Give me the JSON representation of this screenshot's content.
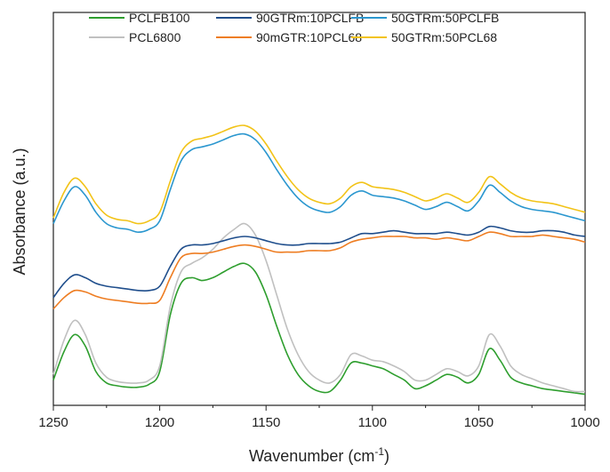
{
  "chart_data": {
    "type": "line",
    "title": "",
    "xlabel": "Wavenumber (cm",
    "xlabel_superscript": "-1",
    "xlabel_suffix": ")",
    "ylabel": "Absorbance (a.u.)",
    "xlim": [
      1250,
      1000
    ],
    "x_direction": "reversed",
    "ylim": [
      0,
      1
    ],
    "y_ticks_labeled": false,
    "x_ticks": [
      "1250",
      "1200",
      "1150",
      "1100",
      "1050",
      "1000"
    ],
    "legend_position": "top",
    "series": [
      {
        "name": "PCLFB100",
        "color": "#2e9e2e",
        "points": [
          [
            1250,
            0.07
          ],
          [
            1245,
            0.17
          ],
          [
            1240,
            0.23
          ],
          [
            1235,
            0.19
          ],
          [
            1230,
            0.1
          ],
          [
            1225,
            0.06
          ],
          [
            1220,
            0.05
          ],
          [
            1215,
            0.045
          ],
          [
            1210,
            0.045
          ],
          [
            1205,
            0.055
          ],
          [
            1200,
            0.1
          ],
          [
            1195,
            0.3
          ],
          [
            1190,
            0.41
          ],
          [
            1185,
            0.43
          ],
          [
            1180,
            0.42
          ],
          [
            1175,
            0.43
          ],
          [
            1170,
            0.45
          ],
          [
            1165,
            0.47
          ],
          [
            1160,
            0.48
          ],
          [
            1155,
            0.45
          ],
          [
            1150,
            0.37
          ],
          [
            1145,
            0.26
          ],
          [
            1140,
            0.16
          ],
          [
            1135,
            0.09
          ],
          [
            1130,
            0.05
          ],
          [
            1125,
            0.03
          ],
          [
            1120,
            0.03
          ],
          [
            1115,
            0.07
          ],
          [
            1110,
            0.13
          ],
          [
            1105,
            0.13
          ],
          [
            1100,
            0.12
          ],
          [
            1095,
            0.11
          ],
          [
            1090,
            0.09
          ],
          [
            1085,
            0.07
          ],
          [
            1080,
            0.04
          ],
          [
            1075,
            0.05
          ],
          [
            1070,
            0.07
          ],
          [
            1065,
            0.09
          ],
          [
            1060,
            0.08
          ],
          [
            1055,
            0.06
          ],
          [
            1050,
            0.09
          ],
          [
            1045,
            0.18
          ],
          [
            1040,
            0.14
          ],
          [
            1035,
            0.08
          ],
          [
            1030,
            0.06
          ],
          [
            1025,
            0.05
          ],
          [
            1020,
            0.04
          ],
          [
            1015,
            0.035
          ],
          [
            1010,
            0.03
          ],
          [
            1005,
            0.025
          ],
          [
            1000,
            0.02
          ]
        ]
      },
      {
        "name": "PCL6800",
        "color": "#c0c0c0",
        "points": [
          [
            1250,
            0.09
          ],
          [
            1245,
            0.21
          ],
          [
            1240,
            0.28
          ],
          [
            1235,
            0.23
          ],
          [
            1230,
            0.13
          ],
          [
            1225,
            0.08
          ],
          [
            1220,
            0.065
          ],
          [
            1215,
            0.06
          ],
          [
            1210,
            0.06
          ],
          [
            1205,
            0.07
          ],
          [
            1200,
            0.12
          ],
          [
            1195,
            0.33
          ],
          [
            1190,
            0.45
          ],
          [
            1185,
            0.48
          ],
          [
            1180,
            0.5
          ],
          [
            1175,
            0.53
          ],
          [
            1170,
            0.57
          ],
          [
            1165,
            0.6
          ],
          [
            1160,
            0.62
          ],
          [
            1155,
            0.58
          ],
          [
            1150,
            0.49
          ],
          [
            1145,
            0.37
          ],
          [
            1140,
            0.25
          ],
          [
            1135,
            0.16
          ],
          [
            1130,
            0.1
          ],
          [
            1125,
            0.07
          ],
          [
            1120,
            0.06
          ],
          [
            1115,
            0.09
          ],
          [
            1110,
            0.16
          ],
          [
            1105,
            0.155
          ],
          [
            1100,
            0.14
          ],
          [
            1095,
            0.135
          ],
          [
            1090,
            0.12
          ],
          [
            1085,
            0.1
          ],
          [
            1080,
            0.07
          ],
          [
            1075,
            0.07
          ],
          [
            1070,
            0.09
          ],
          [
            1065,
            0.11
          ],
          [
            1060,
            0.1
          ],
          [
            1055,
            0.085
          ],
          [
            1050,
            0.12
          ],
          [
            1045,
            0.23
          ],
          [
            1040,
            0.19
          ],
          [
            1035,
            0.12
          ],
          [
            1030,
            0.09
          ],
          [
            1025,
            0.075
          ],
          [
            1020,
            0.06
          ],
          [
            1015,
            0.05
          ],
          [
            1010,
            0.04
          ],
          [
            1005,
            0.03
          ],
          [
            1000,
            0.03
          ]
        ]
      },
      {
        "name": "90GTRm:10PCLFB",
        "color": "#1f4e8c",
        "points": [
          [
            1250,
            0.36
          ],
          [
            1245,
            0.41
          ],
          [
            1240,
            0.44
          ],
          [
            1235,
            0.43
          ],
          [
            1230,
            0.41
          ],
          [
            1225,
            0.4
          ],
          [
            1220,
            0.395
          ],
          [
            1215,
            0.39
          ],
          [
            1210,
            0.385
          ],
          [
            1205,
            0.385
          ],
          [
            1200,
            0.4
          ],
          [
            1195,
            0.47
          ],
          [
            1190,
            0.53
          ],
          [
            1185,
            0.545
          ],
          [
            1180,
            0.545
          ],
          [
            1175,
            0.55
          ],
          [
            1170,
            0.56
          ],
          [
            1165,
            0.57
          ],
          [
            1160,
            0.575
          ],
          [
            1155,
            0.57
          ],
          [
            1150,
            0.56
          ],
          [
            1145,
            0.55
          ],
          [
            1140,
            0.545
          ],
          [
            1135,
            0.545
          ],
          [
            1130,
            0.55
          ],
          [
            1125,
            0.55
          ],
          [
            1120,
            0.55
          ],
          [
            1115,
            0.555
          ],
          [
            1110,
            0.57
          ],
          [
            1105,
            0.585
          ],
          [
            1100,
            0.585
          ],
          [
            1095,
            0.59
          ],
          [
            1090,
            0.595
          ],
          [
            1085,
            0.59
          ],
          [
            1080,
            0.585
          ],
          [
            1075,
            0.585
          ],
          [
            1070,
            0.585
          ],
          [
            1065,
            0.59
          ],
          [
            1060,
            0.585
          ],
          [
            1055,
            0.58
          ],
          [
            1050,
            0.59
          ],
          [
            1045,
            0.61
          ],
          [
            1040,
            0.605
          ],
          [
            1035,
            0.595
          ],
          [
            1030,
            0.59
          ],
          [
            1025,
            0.59
          ],
          [
            1020,
            0.595
          ],
          [
            1015,
            0.595
          ],
          [
            1010,
            0.59
          ],
          [
            1005,
            0.58
          ],
          [
            1000,
            0.575
          ]
        ]
      },
      {
        "name": "90mGTR:10PCL68",
        "color": "#ee7d22",
        "points": [
          [
            1250,
            0.32
          ],
          [
            1245,
            0.36
          ],
          [
            1240,
            0.385
          ],
          [
            1235,
            0.38
          ],
          [
            1230,
            0.365
          ],
          [
            1225,
            0.355
          ],
          [
            1220,
            0.35
          ],
          [
            1215,
            0.345
          ],
          [
            1210,
            0.34
          ],
          [
            1205,
            0.34
          ],
          [
            1200,
            0.35
          ],
          [
            1195,
            0.43
          ],
          [
            1190,
            0.5
          ],
          [
            1185,
            0.515
          ],
          [
            1180,
            0.515
          ],
          [
            1175,
            0.52
          ],
          [
            1170,
            0.53
          ],
          [
            1165,
            0.54
          ],
          [
            1160,
            0.545
          ],
          [
            1155,
            0.54
          ],
          [
            1150,
            0.53
          ],
          [
            1145,
            0.52
          ],
          [
            1140,
            0.52
          ],
          [
            1135,
            0.52
          ],
          [
            1130,
            0.525
          ],
          [
            1125,
            0.525
          ],
          [
            1120,
            0.525
          ],
          [
            1115,
            0.535
          ],
          [
            1110,
            0.555
          ],
          [
            1105,
            0.565
          ],
          [
            1100,
            0.57
          ],
          [
            1095,
            0.575
          ],
          [
            1090,
            0.575
          ],
          [
            1085,
            0.575
          ],
          [
            1080,
            0.57
          ],
          [
            1075,
            0.57
          ],
          [
            1070,
            0.565
          ],
          [
            1065,
            0.57
          ],
          [
            1060,
            0.565
          ],
          [
            1055,
            0.56
          ],
          [
            1050,
            0.575
          ],
          [
            1045,
            0.59
          ],
          [
            1040,
            0.585
          ],
          [
            1035,
            0.575
          ],
          [
            1030,
            0.575
          ],
          [
            1025,
            0.575
          ],
          [
            1020,
            0.58
          ],
          [
            1015,
            0.575
          ],
          [
            1010,
            0.57
          ],
          [
            1005,
            0.565
          ],
          [
            1000,
            0.555
          ]
        ]
      },
      {
        "name": "50GTRm:50PCLFB",
        "color": "#2b97cf",
        "points": [
          [
            1250,
            0.62
          ],
          [
            1245,
            0.7
          ],
          [
            1240,
            0.75
          ],
          [
            1235,
            0.72
          ],
          [
            1230,
            0.66
          ],
          [
            1225,
            0.62
          ],
          [
            1220,
            0.605
          ],
          [
            1215,
            0.6
          ],
          [
            1210,
            0.59
          ],
          [
            1205,
            0.6
          ],
          [
            1200,
            0.63
          ],
          [
            1195,
            0.74
          ],
          [
            1190,
            0.84
          ],
          [
            1185,
            0.88
          ],
          [
            1180,
            0.89
          ],
          [
            1175,
            0.9
          ],
          [
            1170,
            0.915
          ],
          [
            1165,
            0.93
          ],
          [
            1160,
            0.935
          ],
          [
            1155,
            0.915
          ],
          [
            1150,
            0.87
          ],
          [
            1145,
            0.81
          ],
          [
            1140,
            0.755
          ],
          [
            1135,
            0.71
          ],
          [
            1130,
            0.68
          ],
          [
            1125,
            0.665
          ],
          [
            1120,
            0.66
          ],
          [
            1115,
            0.68
          ],
          [
            1110,
            0.72
          ],
          [
            1105,
            0.735
          ],
          [
            1100,
            0.72
          ],
          [
            1095,
            0.715
          ],
          [
            1090,
            0.71
          ],
          [
            1085,
            0.7
          ],
          [
            1080,
            0.685
          ],
          [
            1075,
            0.67
          ],
          [
            1070,
            0.68
          ],
          [
            1065,
            0.695
          ],
          [
            1060,
            0.68
          ],
          [
            1055,
            0.665
          ],
          [
            1050,
            0.7
          ],
          [
            1045,
            0.755
          ],
          [
            1040,
            0.73
          ],
          [
            1035,
            0.7
          ],
          [
            1030,
            0.68
          ],
          [
            1025,
            0.67
          ],
          [
            1020,
            0.665
          ],
          [
            1015,
            0.66
          ],
          [
            1010,
            0.65
          ],
          [
            1005,
            0.64
          ],
          [
            1000,
            0.63
          ]
        ]
      },
      {
        "name": "50GTRm:50PCL68",
        "color": "#f2c318",
        "points": [
          [
            1250,
            0.64
          ],
          [
            1245,
            0.73
          ],
          [
            1240,
            0.78
          ],
          [
            1235,
            0.75
          ],
          [
            1230,
            0.69
          ],
          [
            1225,
            0.65
          ],
          [
            1220,
            0.635
          ],
          [
            1215,
            0.63
          ],
          [
            1210,
            0.62
          ],
          [
            1205,
            0.63
          ],
          [
            1200,
            0.66
          ],
          [
            1195,
            0.77
          ],
          [
            1190,
            0.87
          ],
          [
            1185,
            0.91
          ],
          [
            1180,
            0.92
          ],
          [
            1175,
            0.93
          ],
          [
            1170,
            0.945
          ],
          [
            1165,
            0.96
          ],
          [
            1160,
            0.965
          ],
          [
            1155,
            0.945
          ],
          [
            1150,
            0.9
          ],
          [
            1145,
            0.84
          ],
          [
            1140,
            0.785
          ],
          [
            1135,
            0.74
          ],
          [
            1130,
            0.71
          ],
          [
            1125,
            0.695
          ],
          [
            1120,
            0.69
          ],
          [
            1115,
            0.71
          ],
          [
            1110,
            0.75
          ],
          [
            1105,
            0.765
          ],
          [
            1100,
            0.75
          ],
          [
            1095,
            0.745
          ],
          [
            1090,
            0.74
          ],
          [
            1085,
            0.73
          ],
          [
            1080,
            0.715
          ],
          [
            1075,
            0.7
          ],
          [
            1070,
            0.71
          ],
          [
            1065,
            0.725
          ],
          [
            1060,
            0.71
          ],
          [
            1055,
            0.695
          ],
          [
            1050,
            0.73
          ],
          [
            1045,
            0.785
          ],
          [
            1040,
            0.76
          ],
          [
            1035,
            0.73
          ],
          [
            1030,
            0.71
          ],
          [
            1025,
            0.7
          ],
          [
            1020,
            0.695
          ],
          [
            1015,
            0.69
          ],
          [
            1010,
            0.68
          ],
          [
            1005,
            0.67
          ],
          [
            1000,
            0.66
          ]
        ]
      }
    ],
    "legend_rows": [
      [
        "PCLFB100",
        "90GTRm:10PCLFB",
        "50GTRm:50PCLFB"
      ],
      [
        "PCL6800",
        "90mGTR:10PCL68",
        "50GTRm:50PCL68"
      ]
    ]
  }
}
